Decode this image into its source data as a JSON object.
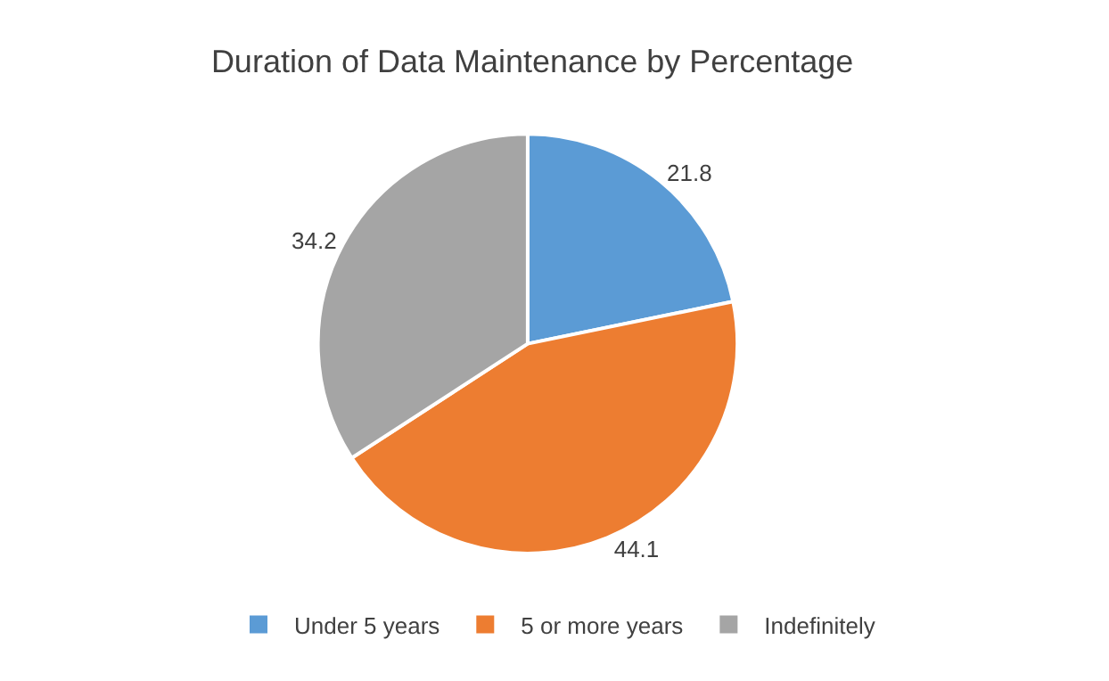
{
  "chart_data": {
    "type": "pie",
    "title": "Duration of Data Maintenance by Percentage",
    "categories": [
      "Under 5 years",
      "5 or more years",
      "Indefinitely"
    ],
    "values": [
      21.8,
      44.1,
      34.2
    ],
    "colors": [
      "#5b9bd5",
      "#ed7d31",
      "#a5a5a5"
    ],
    "data_labels": true,
    "legend": "bottom"
  }
}
